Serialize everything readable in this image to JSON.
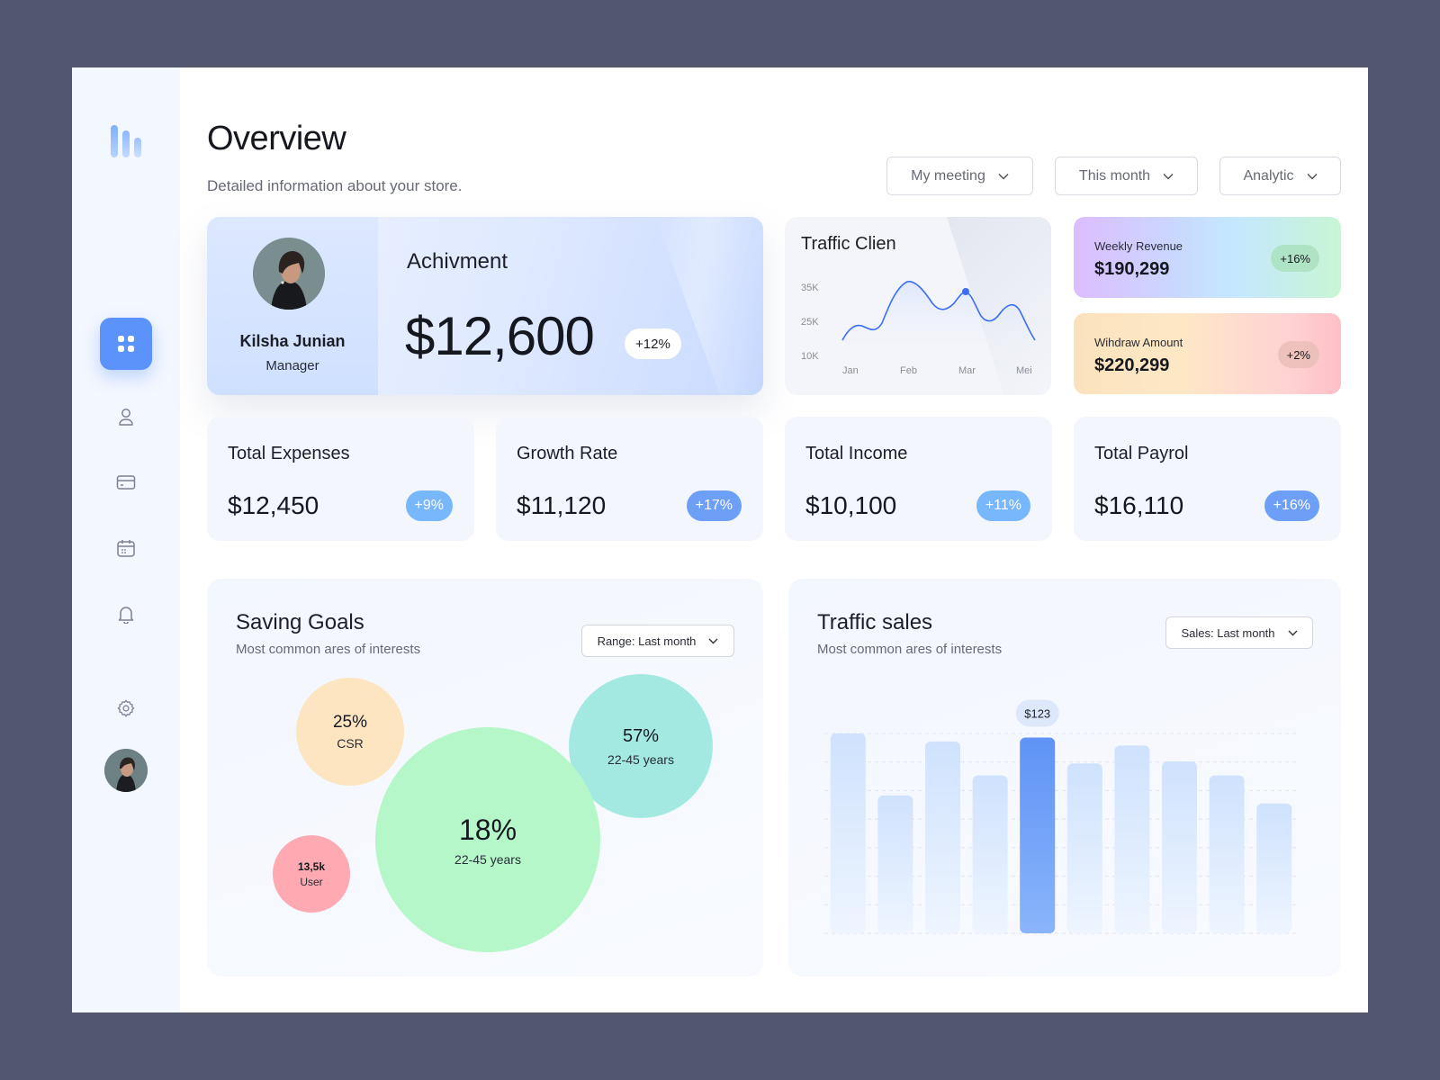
{
  "header": {
    "title": "Overview",
    "subtitle": "Detailed information about your store.",
    "dropdowns": [
      "My meeting",
      "This month",
      "Analytic"
    ]
  },
  "sidebar": {
    "items": [
      {
        "name": "dashboard",
        "icon": "grid-icon",
        "active": true
      },
      {
        "name": "profile",
        "icon": "user-icon"
      },
      {
        "name": "cards",
        "icon": "credit-card-icon"
      },
      {
        "name": "calendar",
        "icon": "calendar-icon"
      },
      {
        "name": "notifications",
        "icon": "bell-icon"
      },
      {
        "name": "settings",
        "icon": "gear-icon"
      }
    ]
  },
  "achievement": {
    "name": "Kilsha Junian",
    "role": "Manager",
    "title": "Achivment",
    "value": "$12,600",
    "change": "+12%"
  },
  "traffic_client": {
    "title": "Traffic Clien",
    "chart_data": {
      "type": "line",
      "x_labels": [
        "Jan",
        "Feb",
        "Mar",
        "Mei"
      ],
      "y_labels": [
        "35K",
        "25K",
        "10K"
      ],
      "series_color": "#3b6ef5"
    }
  },
  "revenue_cards": [
    {
      "label": "Weekly Revenue",
      "value": "$190,299",
      "change": "+16%"
    },
    {
      "label": "Wihdraw Amount",
      "value": "$220,299",
      "change": "+2%"
    }
  ],
  "stats": [
    {
      "title": "Total Expenses",
      "value": "$12,450",
      "change": "+9%"
    },
    {
      "title": "Growth Rate",
      "value": "$11,120",
      "change": "+17%"
    },
    {
      "title": "Total Income",
      "value": "$10,100",
      "change": "+11%"
    },
    {
      "title": "Total Payrol",
      "value": "$16,110",
      "change": "+16%"
    }
  ],
  "saving_goals": {
    "title": "Saving Goals",
    "subtitle": "Most common ares of interests",
    "range": "Range: Last month",
    "bubbles": [
      {
        "value": "25%",
        "label": "CSR",
        "color": "#fde5c2"
      },
      {
        "value": "57%",
        "label": "22-45 years",
        "color": "#a3e9e2"
      },
      {
        "value": "18%",
        "label": "22-45 years",
        "color": "#b5f7c9"
      },
      {
        "value": "13,5k",
        "label": "User",
        "color": "#ffa9b3"
      }
    ]
  },
  "traffic_sales": {
    "title": "Traffic sales",
    "subtitle": "Most common ares of interests",
    "range": "Sales: Last month",
    "chart_data": {
      "type": "bar",
      "values": [
        100,
        69,
        96,
        79,
        98,
        85,
        94,
        86,
        79,
        65
      ],
      "highlight_index": 4,
      "highlight_label": "$123",
      "bar_color": "#d6e7ff",
      "highlight_color": "#6a9ff7",
      "grid": true
    }
  }
}
